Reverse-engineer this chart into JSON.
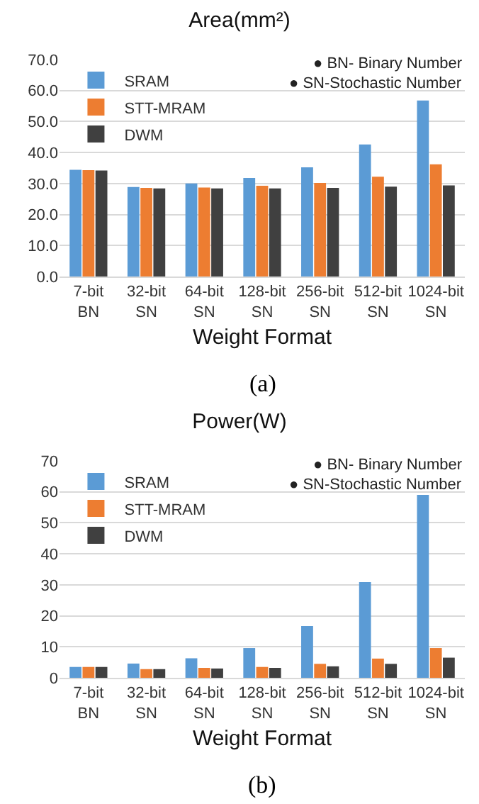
{
  "chart_data": [
    {
      "type": "bar",
      "title": "Area(mm²)",
      "xlabel": "Weight Format",
      "categories": [
        "7-bit BN",
        "32-bit SN",
        "64-bit SN",
        "128-bit SN",
        "256-bit SN",
        "512-bit SN",
        "1024-bit SN"
      ],
      "series": [
        {
          "name": "SRAM",
          "color": "#5b9bd5",
          "values": [
            34.4,
            28.9,
            30.0,
            31.8,
            35.2,
            42.6,
            56.8
          ]
        },
        {
          "name": "STT-MRAM",
          "color": "#ed7d31",
          "values": [
            34.3,
            28.6,
            28.7,
            29.3,
            30.2,
            32.2,
            36.2
          ]
        },
        {
          "name": "DWM",
          "color": "#404040",
          "values": [
            34.2,
            28.4,
            28.4,
            28.4,
            28.6,
            29.0,
            29.4
          ]
        }
      ],
      "ylim": [
        0,
        70
      ],
      "yticks": [
        {
          "value": 0,
          "label": "0.0"
        },
        {
          "value": 10,
          "label": "10.0"
        },
        {
          "value": 20,
          "label": "20.0"
        },
        {
          "value": 30,
          "label": "30.0"
        },
        {
          "value": 40,
          "label": "40.0"
        },
        {
          "value": 50,
          "label": "50.0"
        },
        {
          "value": 60,
          "label": "60.0"
        },
        {
          "value": 70,
          "label": "70.0"
        }
      ],
      "grid": "y",
      "legend": "top left",
      "annotations": [
        "● BN- Binary Number",
        "● SN-Stochastic Number",
        "(a)"
      ]
    },
    {
      "type": "bar",
      "title": "Power(W)",
      "xlabel": "Weight Format",
      "categories": [
        "7-bit BN",
        "32-bit SN",
        "64-bit SN",
        "128-bit SN",
        "256-bit SN",
        "512-bit SN",
        "1024-bit SN"
      ],
      "series": [
        {
          "name": "SRAM",
          "color": "#5b9bd5",
          "values": [
            3.5,
            4.6,
            6.3,
            9.6,
            16.7,
            30.9,
            59.0
          ]
        },
        {
          "name": "STT-MRAM",
          "color": "#ed7d31",
          "values": [
            3.5,
            2.8,
            3.2,
            3.5,
            4.5,
            6.2,
            9.6
          ]
        },
        {
          "name": "DWM",
          "color": "#404040",
          "values": [
            3.5,
            2.8,
            3.0,
            3.2,
            3.7,
            4.5,
            6.5
          ]
        }
      ],
      "ylim": [
        0,
        70
      ],
      "yticks": [
        0,
        10,
        20,
        30,
        40,
        50,
        60,
        70
      ],
      "grid": "y",
      "legend": "top left",
      "annotations": [
        "● BN- Binary Number",
        "● SN-Stochastic Number",
        "(b)"
      ]
    }
  ]
}
